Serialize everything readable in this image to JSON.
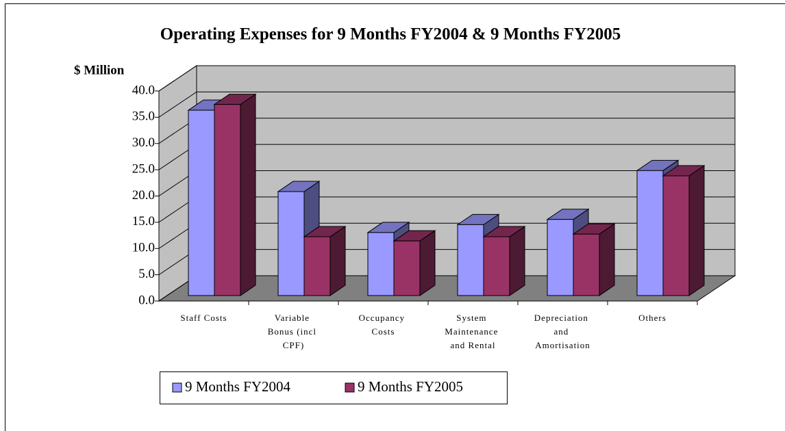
{
  "chart_data": {
    "type": "bar3d",
    "title": "Operating Expenses for 9 Months FY2004 & 9 Months FY2005",
    "y_axis_label": "$ Million",
    "categories": [
      "Staff Costs",
      "Variable Bonus (incl CPF)",
      "Occupancy Costs",
      "System Maintenance and Rental",
      "Depreciation and Amortisation",
      "Others"
    ],
    "series": [
      {
        "name": "9 Months FY2004",
        "color": "#9999ff",
        "values": [
          35.3,
          19.8,
          12.0,
          13.5,
          14.5,
          23.8
        ]
      },
      {
        "name": "9 Months FY2005",
        "color": "#993366",
        "values": [
          36.4,
          11.2,
          10.4,
          11.2,
          11.7,
          22.8
        ]
      }
    ],
    "ylim": [
      0,
      40
    ],
    "yticks": [
      {
        "value": 0,
        "label": "0.0"
      },
      {
        "value": 5,
        "label": "5.0"
      },
      {
        "value": 10,
        "label": "10.0"
      },
      {
        "value": 15,
        "label": "15.0"
      },
      {
        "value": 20,
        "label": "20.0"
      },
      {
        "value": 25,
        "label": "25.0"
      },
      {
        "value": 30,
        "label": "30.0"
      },
      {
        "value": 35,
        "label": "35.0"
      },
      {
        "value": 40,
        "label": "40.0"
      }
    ],
    "grid": true,
    "legend": "bottom"
  }
}
